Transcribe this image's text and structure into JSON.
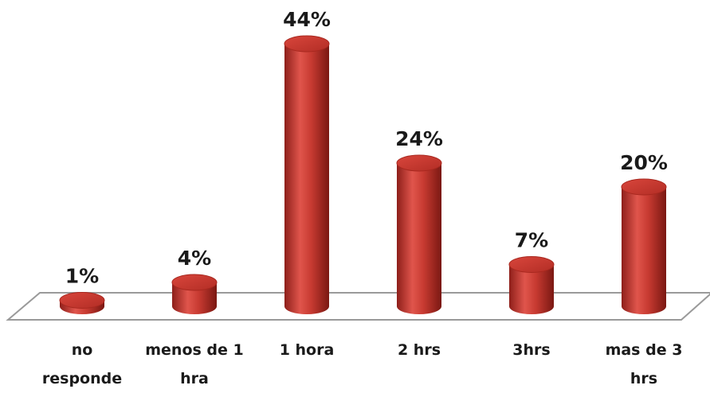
{
  "chart_data": {
    "type": "bar",
    "categories": [
      "no responde",
      "menos de 1 hra",
      "1 hora",
      "2 hrs",
      "3hrs",
      "mas de 3 hrs"
    ],
    "values": [
      1,
      4,
      44,
      24,
      7,
      20
    ],
    "value_labels": [
      "1%",
      "4%",
      "44%",
      "24%",
      "7%",
      "20%"
    ],
    "color": "#c0392b"
  }
}
